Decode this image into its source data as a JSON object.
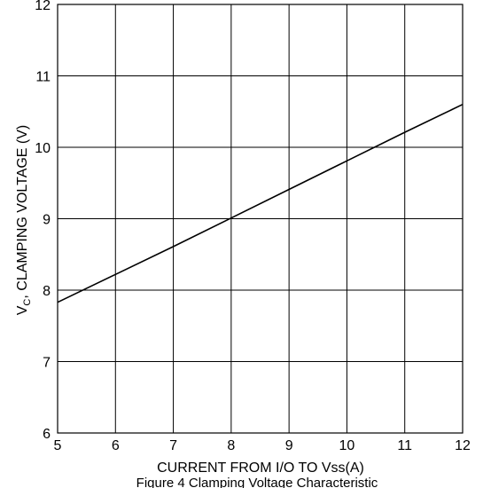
{
  "chart_data": {
    "type": "line",
    "title": "",
    "xlabel": "CURRENT FROM I/O TO Vss(A)",
    "ylabel_main": "V",
    "ylabel_sub": "C",
    "ylabel_rest": ", CLAMPING VOLTAGE (V)",
    "caption": "Figure 4 Clamping Voltage Characteristic",
    "xlim": [
      5,
      12
    ],
    "ylim": [
      6,
      12
    ],
    "x_ticks": [
      5,
      6,
      7,
      8,
      9,
      10,
      11,
      12
    ],
    "y_ticks": [
      6,
      7,
      8,
      9,
      10,
      11,
      12
    ],
    "grid": true,
    "legend": "none",
    "series": [
      {
        "x": [
          5,
          6,
          7,
          8,
          9,
          10,
          11,
          12
        ],
        "y": [
          7.83,
          8.22,
          8.61,
          9.01,
          9.41,
          9.81,
          10.21,
          10.6
        ]
      }
    ],
    "colors": {
      "line": "#000000",
      "grid": "#000000",
      "background": "#ffffff"
    }
  }
}
